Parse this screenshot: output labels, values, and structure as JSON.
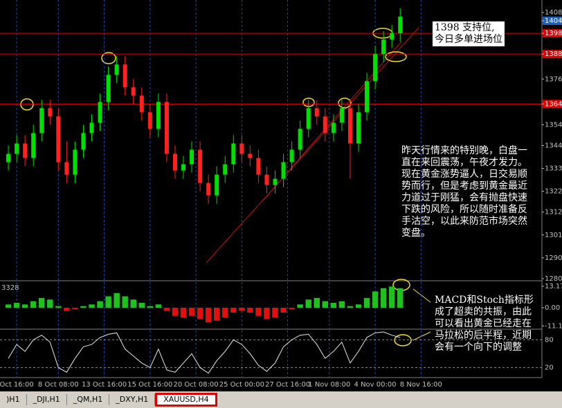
{
  "chart_data": [
    {
      "type": "candlestick",
      "up_color": "#00e000",
      "down_color": "#ff2020",
      "hline_color": "#e00000",
      "last_color": "#2060c0",
      "open": [
        1336,
        1340,
        1345,
        1338,
        1350,
        1362,
        1358,
        1336,
        1330,
        1342,
        1350,
        1355,
        1365,
        1378,
        1383,
        1372,
        1368,
        1360,
        1352,
        1365,
        1340,
        1332,
        1335,
        1342,
        1326,
        1320,
        1330,
        1335,
        1345,
        1340,
        1338,
        1330,
        1325,
        1328,
        1336,
        1342,
        1352,
        1362,
        1358,
        1350,
        1355,
        1362,
        1345,
        1360,
        1375,
        1388,
        1395,
        1398
      ],
      "high": [
        1344,
        1349,
        1349,
        1354,
        1366,
        1366,
        1362,
        1346,
        1346,
        1354,
        1359,
        1369,
        1382,
        1387,
        1387,
        1376,
        1372,
        1364,
        1369,
        1369,
        1344,
        1339,
        1346,
        1346,
        1330,
        1334,
        1339,
        1349,
        1349,
        1344,
        1342,
        1334,
        1332,
        1340,
        1346,
        1356,
        1366,
        1366,
        1362,
        1359,
        1366,
        1366,
        1364,
        1379,
        1392,
        1399,
        1402,
        1410
      ],
      "low": [
        1332,
        1336,
        1334,
        1334,
        1346,
        1354,
        1332,
        1326,
        1326,
        1338,
        1346,
        1351,
        1361,
        1374,
        1368,
        1364,
        1356,
        1348,
        1348,
        1336,
        1328,
        1328,
        1331,
        1322,
        1316,
        1316,
        1326,
        1331,
        1336,
        1334,
        1326,
        1321,
        1321,
        1324,
        1332,
        1338,
        1348,
        1354,
        1346,
        1346,
        1351,
        1328,
        1341,
        1356,
        1371,
        1384,
        1391,
        1394
      ],
      "close": [
        1340,
        1345,
        1338,
        1350,
        1362,
        1358,
        1336,
        1330,
        1342,
        1350,
        1355,
        1365,
        1378,
        1383,
        1372,
        1368,
        1360,
        1352,
        1365,
        1340,
        1332,
        1335,
        1342,
        1326,
        1320,
        1330,
        1335,
        1345,
        1340,
        1338,
        1330,
        1325,
        1328,
        1336,
        1342,
        1352,
        1362,
        1358,
        1350,
        1355,
        1362,
        1345,
        1360,
        1375,
        1388,
        1395,
        1398,
        1406
      ],
      "xlim": [
        -1,
        64
      ],
      "xticks": [
        {
          "value": 1,
          "label": "Oct 16:00"
        },
        {
          "value": 6,
          "label": "8 Oct 08:00"
        },
        {
          "value": 11.5,
          "label": "13 Oct 16:00"
        },
        {
          "value": 17,
          "label": "15 Oct 16:00"
        },
        {
          "value": 22.5,
          "label": "20 Oct 08:00"
        },
        {
          "value": 28,
          "label": "25 Oct 00:00"
        },
        {
          "value": 33.5,
          "label": "27 Oct 16:00"
        },
        {
          "value": 38.5,
          "label": "1 Nov 08:00"
        },
        {
          "value": 44,
          "label": "4 Nov 00:00"
        },
        {
          "value": 49.5,
          "label": "8 Nov 16:00"
        }
      ],
      "ylim": [
        1279.3,
        1414
      ],
      "yticks": [
        1408,
        1404,
        1398,
        1388,
        1376,
        1364,
        1354,
        1344,
        1333,
        1322,
        1312,
        1301,
        1290,
        1280
      ],
      "hlines": [
        1398,
        1388,
        1364
      ],
      "last_price": 1404
    },
    {
      "type": "bar",
      "title": "3328",
      "pos_color": "#20c020",
      "neg_color": "#e01010",
      "values": [
        2,
        3,
        2,
        4,
        6,
        5,
        1,
        -2,
        -1,
        1,
        2,
        4,
        7,
        9,
        7,
        5,
        3,
        1,
        2,
        -2,
        -5,
        -6,
        -5,
        -7,
        -9,
        -8,
        -6,
        -3,
        -2,
        -3,
        -5,
        -7,
        -6,
        -3,
        -1,
        2,
        5,
        6,
        4,
        3,
        4,
        1,
        2,
        6,
        10,
        12,
        13,
        12
      ],
      "ylim": [
        -12.75,
        15.7
      ],
      "yticks": [
        13.1795,
        {
          "value": 0,
          "label": "0.00"
        },
        -11.1695
      ]
    },
    {
      "type": "line",
      "color": "#e8e8e8",
      "values": [
        40,
        70,
        55,
        80,
        90,
        75,
        20,
        10,
        40,
        65,
        70,
        85,
        92,
        95,
        60,
        45,
        30,
        20,
        60,
        15,
        10,
        30,
        50,
        20,
        8,
        35,
        55,
        80,
        70,
        50,
        25,
        12,
        30,
        65,
        80,
        90,
        92,
        70,
        40,
        55,
        75,
        30,
        55,
        85,
        95,
        97,
        90,
        85
      ],
      "ylim": [
        0,
        100
      ],
      "yticks": [
        80,
        20
      ]
    }
  ],
  "notes": [
    "1398 支持位,\n今日多单进场位",
    "昨天行情来的特别晚，白盘一直在来回震荡，午夜才发力。现在黄金涨势逼人，日交易顺势而行，但是考虑到黄金最近力道过于刚猛，会有抛盘快速下跌的风险，所以随时准备反手沽空，以此来防范市场突然变盘。",
    "MACD和Stoch指标形成了超卖的共振，由此可以看出黄金已经走在马拉松的后半程，近期会有一个向下的调整"
  ],
  "tabs": [
    ")H1",
    "_DJI,H1",
    "_QM,H1",
    "_DXY,H1",
    "XAUUSD,H4"
  ],
  "active_tab": 4
}
